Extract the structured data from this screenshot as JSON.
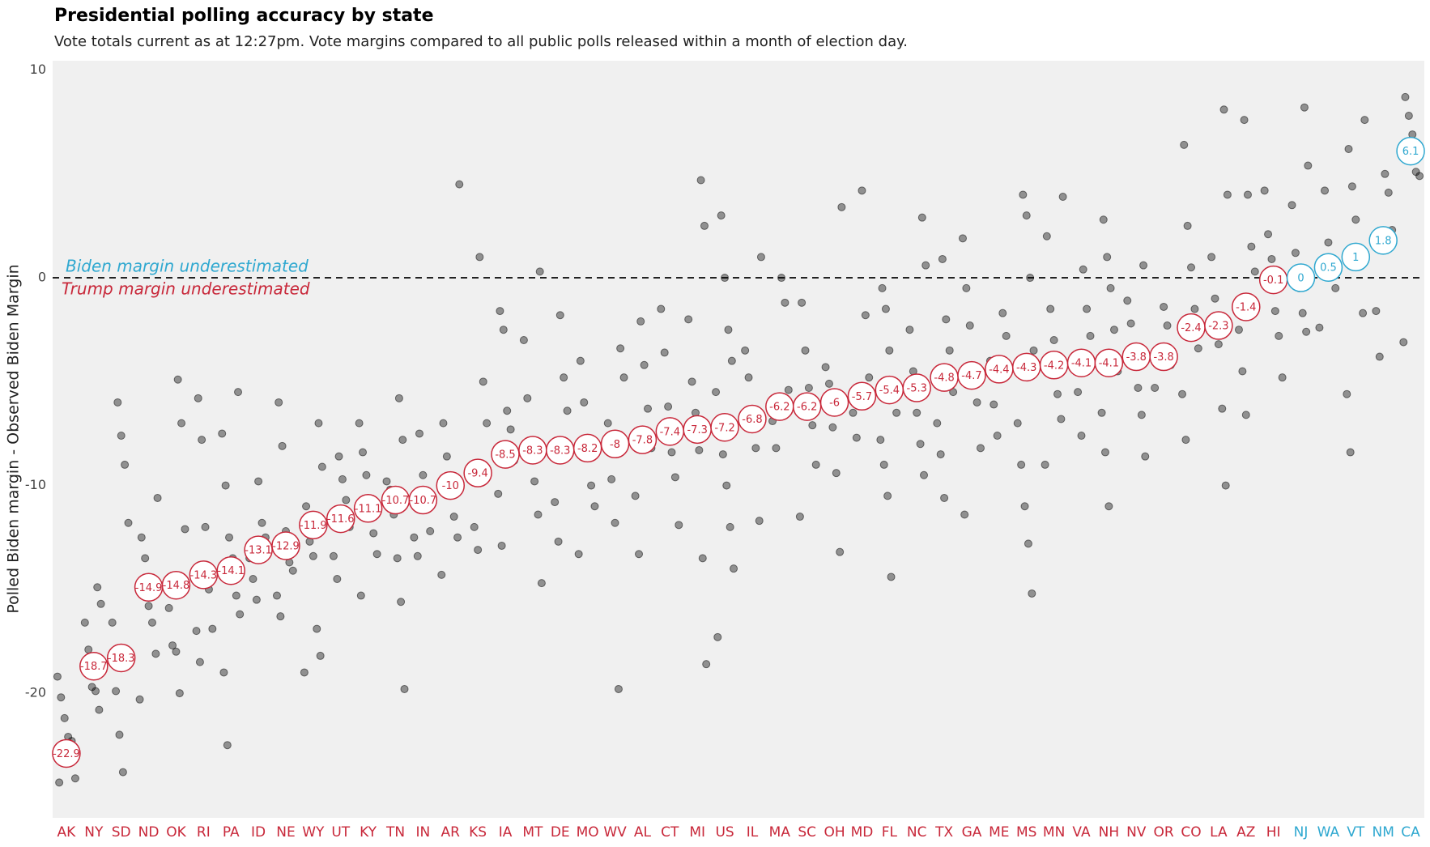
{
  "chart_data": {
    "type": "dotplot",
    "title": "Presidential polling accuracy by state",
    "subtitle": "Vote totals current as at 12:27pm. Vote margins compared to all public polls released within a month of election day.",
    "y_label": "Polled Biden margin - Observed Biden Margin",
    "annotations": {
      "above": "Biden margin underestimated",
      "below": "Trump margin underestimated"
    },
    "positive_color": "#2fa8d0",
    "negative_color": "#c8283a",
    "point_color": "#000000",
    "ylim": [
      -26,
      10.45
    ],
    "yticks": [
      10,
      0,
      -10,
      -20
    ],
    "reference_line": 0,
    "categories": [
      "AK",
      "NY",
      "SD",
      "ND",
      "OK",
      "RI",
      "PA",
      "ID",
      "NE",
      "WY",
      "UT",
      "KY",
      "TN",
      "IN",
      "AR",
      "KS",
      "IA",
      "MT",
      "DE",
      "MO",
      "WV",
      "AL",
      "CT",
      "MI",
      "US",
      "IL",
      "MA",
      "SC",
      "OH",
      "MD",
      "FL",
      "NC",
      "TX",
      "GA",
      "ME",
      "MS",
      "MN",
      "VA",
      "NH",
      "NV",
      "OR",
      "CO",
      "LA",
      "AZ",
      "HI",
      "NJ",
      "WA",
      "VT",
      "NM",
      "CA"
    ],
    "values": [
      -22.9,
      -18.7,
      -18.3,
      -14.9,
      -14.8,
      -14.3,
      -14.1,
      -13.1,
      -12.9,
      -11.9,
      -11.6,
      -11.1,
      -10.7,
      -10.7,
      -10,
      -9.4,
      -8.5,
      -8.3,
      -8.3,
      -8.2,
      -8,
      -7.8,
      -7.4,
      -7.3,
      -7.2,
      -6.8,
      -6.2,
      -6.2,
      -6,
      -5.7,
      -5.4,
      -5.3,
      -4.8,
      -4.7,
      -4.4,
      -4.3,
      -4.2,
      -4.1,
      -4.1,
      -3.8,
      -3.8,
      -2.4,
      -2.3,
      -1.4,
      -0.1,
      0,
      0.5,
      1,
      1.8,
      6.1
    ],
    "polls": [
      [
        -19.2,
        -20.2,
        -21.2,
        -22.1,
        -22.3,
        -24.1,
        -24.3
      ],
      [
        -14.9,
        -15.7,
        -16.6,
        -17.9,
        -19.7,
        -19.9,
        -20.8
      ],
      [
        -6,
        -7.6,
        -9,
        -11.8,
        -16.6,
        -19.9,
        -22,
        -23.8
      ],
      [
        -10.6,
        -12.5,
        -13.5,
        -15.8,
        -16.6,
        -18.1,
        -20.3
      ],
      [
        -4.9,
        -7,
        -12.1,
        -15.9,
        -17.7,
        -18,
        -20
      ],
      [
        -5.8,
        -7.8,
        -12,
        -15,
        -16.9,
        -17,
        -18.5
      ],
      [
        -5.5,
        -7.5,
        -10,
        -12.5,
        -13.5,
        -15.3,
        -16.2,
        -19,
        -22.5
      ],
      [
        -9.8,
        -11.8,
        -12.5,
        -13.5,
        -14.5,
        -15.5
      ],
      [
        -6,
        -8.1,
        -12.2,
        -13.7,
        -14.1,
        -15.3,
        -16.3
      ],
      [
        -7,
        -9.1,
        -11,
        -12.7,
        -13.4,
        -16.9,
        -18.2,
        -19
      ],
      [
        -8.6,
        -9.7,
        -10.7,
        -12,
        -13.4,
        -14.5
      ],
      [
        -7,
        -8.4,
        -9.5,
        -11,
        -12.3,
        -13.3,
        -15.3
      ],
      [
        -5.8,
        -7.8,
        -9.8,
        -10.2,
        -11.4,
        -13.5,
        -15.6,
        -19.8
      ],
      [
        -7.5,
        -9.5,
        -11,
        -12.2,
        -12.5,
        -13.4
      ],
      [
        4.5,
        -7,
        -8.6,
        -9.8,
        -11.5,
        -12.5,
        -14.3
      ],
      [
        1,
        -5,
        -7,
        -9.5,
        -12,
        -13.1
      ],
      [
        -1.6,
        -2.5,
        -6.4,
        -7.3,
        -8.8,
        -10.4,
        -12.9
      ],
      [
        0.3,
        -3,
        -5.8,
        -8.2,
        -9.8,
        -11.4,
        -14.7
      ],
      [
        -1.8,
        -4.8,
        -6.4,
        -8.2,
        -10.8,
        -12.7
      ],
      [
        -4,
        -6,
        -8.5,
        -10,
        -11,
        -13.3
      ],
      [
        -3.4,
        -4.8,
        -7,
        -9.7,
        -11.8,
        -19.8
      ],
      [
        -2.1,
        -4.2,
        -6.3,
        -8.2,
        -10.5,
        -13.3
      ],
      [
        -1.5,
        -3.6,
        -6.2,
        -8.4,
        -9.6,
        -11.9
      ],
      [
        4.7,
        2.5,
        -2,
        -5,
        -6.5,
        -8.3,
        -13.5,
        -18.6
      ],
      [
        3,
        0,
        -2.5,
        -4,
        -5.5,
        -7,
        -8.5,
        -10,
        -12,
        -14,
        -17.3
      ],
      [
        1,
        -3.5,
        -4.8,
        -6.5,
        -8.2,
        -11.7
      ],
      [
        0,
        -1.2,
        -5.4,
        -6.9,
        -8.2
      ],
      [
        -1.2,
        -3.5,
        -5.3,
        -7.1,
        -9,
        -11.5
      ],
      [
        3.4,
        -4.3,
        -5.1,
        -7.2,
        -9.4,
        -13.2
      ],
      [
        4.2,
        -1.8,
        -4.8,
        -6.5,
        -7.7
      ],
      [
        -0.5,
        -1.5,
        -3.5,
        -5,
        -6.5,
        -7.8,
        -9,
        -10.5,
        -14.4
      ],
      [
        2.9,
        0.6,
        -2.5,
        -4.5,
        -6.5,
        -8,
        -9.5
      ],
      [
        0.9,
        -2,
        -3.5,
        -5.5,
        -7,
        -8.5,
        -10.6
      ],
      [
        1.9,
        -0.5,
        -2.3,
        -4.5,
        -6,
        -8.2,
        -11.4
      ],
      [
        -1.7,
        -2.8,
        -4,
        -6.1,
        -7.6
      ],
      [
        4,
        3,
        0,
        -3.5,
        -7,
        -9,
        -11,
        -12.8,
        -15.2
      ],
      [
        3.9,
        2,
        -1.5,
        -3,
        -5.6,
        -6.8,
        -9
      ],
      [
        0.4,
        -1.5,
        -2.8,
        -4.2,
        -5.5,
        -7.6
      ],
      [
        2.8,
        1,
        -0.5,
        -2.5,
        -4.5,
        -6.5,
        -8.4,
        -11
      ],
      [
        0.6,
        -1.1,
        -2.2,
        -4,
        -5.3,
        -6.6,
        -8.6
      ],
      [
        -1.4,
        -2.3,
        -4.2,
        -5.3
      ],
      [
        6.4,
        2.5,
        0.5,
        -1.5,
        -3.4,
        -5.6,
        -7.8
      ],
      [
        8.1,
        4,
        1,
        -1,
        -3.2,
        -6.3,
        -10
      ],
      [
        7.6,
        4,
        1.5,
        0.3,
        -2.5,
        -4.5,
        -6.6
      ],
      [
        4.2,
        2.1,
        0.9,
        -1.6,
        -2.8,
        -4.8
      ],
      [
        8.2,
        5.4,
        3.5,
        1.2,
        -0.5,
        -1.7,
        -2.6
      ],
      [
        4.2,
        1.7,
        0.5,
        -0.5,
        -2.4
      ],
      [
        7.6,
        6.2,
        4.4,
        2.8,
        1,
        -1.7,
        -5.6,
        -8.4
      ],
      [
        5,
        4.1,
        2.3,
        -1.6,
        -3.8
      ],
      [
        8.7,
        7.8,
        6.9,
        5.1,
        4.9,
        -3.1
      ]
    ]
  }
}
